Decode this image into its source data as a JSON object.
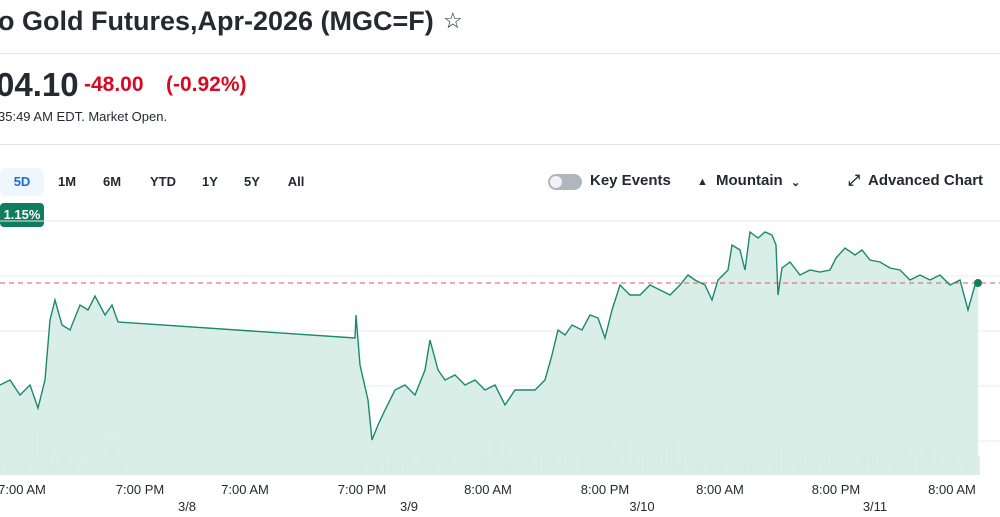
{
  "header": {
    "title": "o Gold Futures,Apr-2026 (MGC=F)",
    "star_icon": "star-outline"
  },
  "quote": {
    "price": "04.10",
    "change": "-48.00",
    "change_pct": "(-0.92%)",
    "timestamp": "35:49 AM EDT. Market Open.",
    "change_color": "#d60a22"
  },
  "ranges": [
    {
      "label": "5D",
      "active": true
    },
    {
      "label": "1M"
    },
    {
      "label": "6M"
    },
    {
      "label": "YTD"
    },
    {
      "label": "1Y"
    },
    {
      "label": "5Y"
    },
    {
      "label": "All"
    }
  ],
  "range_badge": "1.15%",
  "controls": {
    "key_events": "Key Events",
    "key_events_on": false,
    "chart_type": "Mountain",
    "advanced": "Advanced Chart"
  },
  "chart_data": {
    "type": "area",
    "line_color": "#1a8a6a",
    "fill_color": "#d6ece5",
    "reference_line": 5252.1,
    "x_ticks": [
      {
        "time": "7:00 AM"
      },
      {
        "time": "7:00 PM",
        "date": "3/8"
      },
      {
        "time": "7:00 AM"
      },
      {
        "time": "7:00 PM",
        "date": "3/9"
      },
      {
        "time": "8:00 AM"
      },
      {
        "time": "8:00 PM",
        "date": "3/10"
      },
      {
        "time": "8:00 AM"
      },
      {
        "time": "8:00 PM",
        "date": "3/11"
      },
      {
        "time": "8:00 AM"
      }
    ],
    "values": [
      5201.1,
      5203.6,
      5196.1,
      5201.1,
      5189.6,
      5203.6,
      5233.6,
      5243.6,
      5231.1,
      5228.6,
      5241.1,
      5238.6,
      5245.6,
      5236.1,
      5241.1,
      5232.6,
      5224.6,
      5236.1,
      5211.1,
      5193.6,
      5173.6,
      5181.1,
      5188.6,
      5198.6,
      5201.1,
      5196.1,
      5208.6,
      5223.6,
      5208.6,
      5203.6,
      5206.1,
      5201.1,
      5203.6,
      5198.6,
      5201.1,
      5191.1,
      5198.6,
      5198.6,
      5198.6,
      5203.6,
      5216.1,
      5228.6,
      5226.1,
      5231.1,
      5228.6,
      5236.1,
      5234.6,
      5224.6,
      5238.6,
      5251.1,
      5246.1,
      5246.1,
      5251.1,
      5248.6,
      5246.1,
      5251.1,
      5256.1,
      5253.6,
      5251.1,
      5243.6,
      5253.6,
      5258.6,
      5271.1,
      5268.6,
      5258.6,
      5277.6,
      5274.6,
      5277.6,
      5276.1,
      5271.1,
      5246.1,
      5259.6,
      5262.6,
      5256.1,
      5258.6,
      5257.6,
      5258.6,
      5264.6,
      5269.6,
      5266.1,
      5268.6,
      5263.6,
      5262.6,
      5259.6,
      5258.6,
      5253.6,
      5256.1,
      5253.6,
      5256.1,
      5251.1,
      5253.6,
      5238.6,
      5251.1,
      5252.1
    ]
  }
}
